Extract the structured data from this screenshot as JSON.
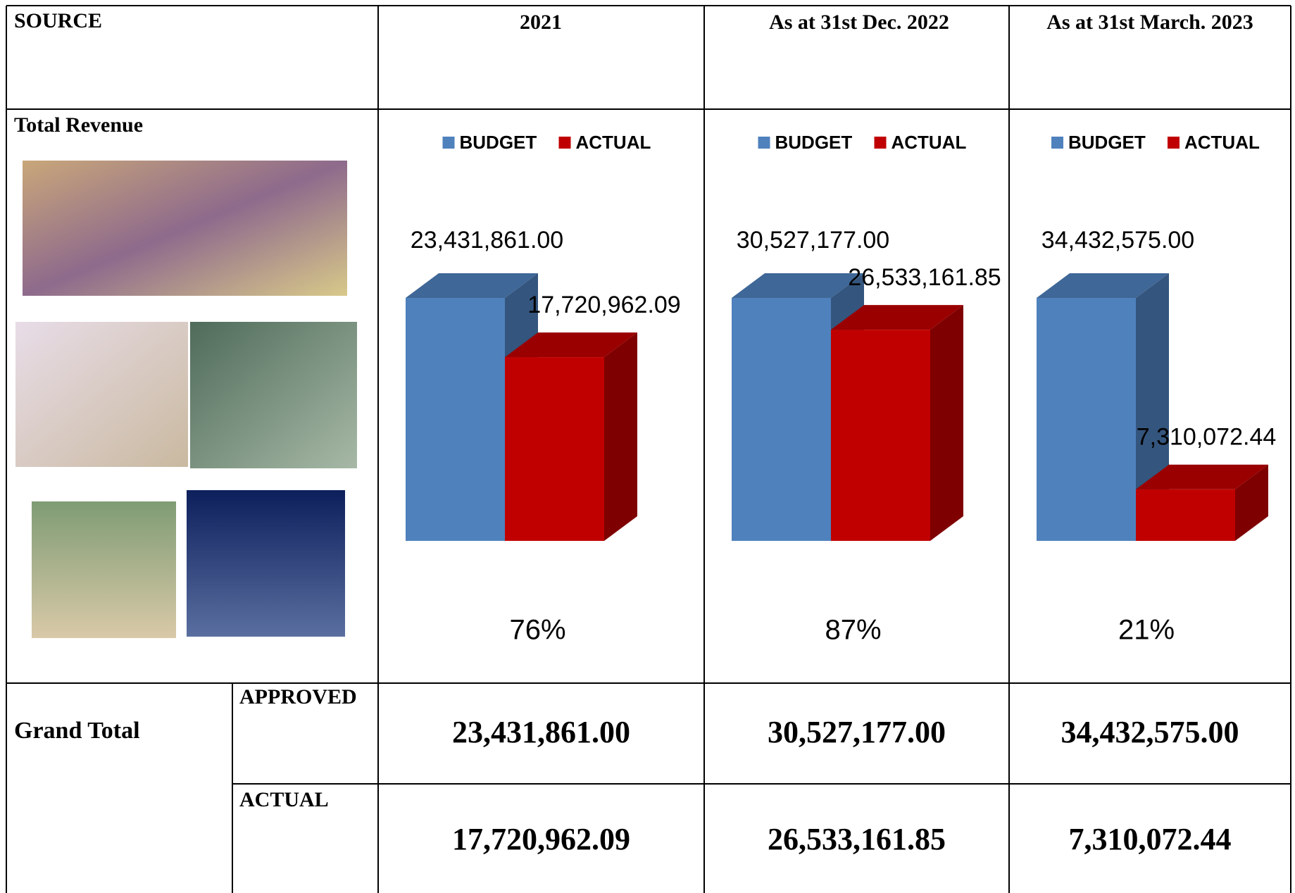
{
  "table": {
    "headers": [
      "SOURCE",
      "2021",
      "As at 31st Dec. 2022",
      "As at 31st March. 2023"
    ],
    "section": "Total Revenue",
    "grand_total": {
      "label": "Grand Total",
      "rows": [
        {
          "label": "APPROVED",
          "values": [
            "23,431,861.00",
            "30,527,177.00",
            "34,432,575.00"
          ]
        },
        {
          "label": "ACTUAL",
          "values": [
            "17,720,962.09",
            "26,533,161.85",
            "7,310,072.44"
          ]
        }
      ]
    }
  },
  "chart_data": [
    {
      "type": "bar",
      "annotation": "76%",
      "series": [
        {
          "name": "BUDGET",
          "color": "#4f81bd",
          "values": [
            23431861.0
          ],
          "value_labels": [
            "23,431,861.00"
          ]
        },
        {
          "name": "ACTUAL",
          "color": "#c00000",
          "values": [
            17720962.09
          ],
          "value_labels": [
            "17,720,962.09"
          ]
        }
      ]
    },
    {
      "type": "bar",
      "annotation": "87%",
      "series": [
        {
          "name": "BUDGET",
          "color": "#4f81bd",
          "values": [
            30527177.0
          ],
          "value_labels": [
            "30,527,177.00"
          ]
        },
        {
          "name": "ACTUAL",
          "color": "#c00000",
          "values": [
            26533161.85
          ],
          "value_labels": [
            "26,533,161.85"
          ]
        }
      ]
    },
    {
      "type": "bar",
      "annotation": "21%",
      "series": [
        {
          "name": "BUDGET",
          "color": "#4f81bd",
          "values": [
            34432575.0
          ],
          "value_labels": [
            "34,432,575.00"
          ]
        },
        {
          "name": "ACTUAL",
          "color": "#c00000",
          "values": [
            7310072.44
          ],
          "value_labels": [
            "7,310,072.44"
          ]
        }
      ]
    }
  ]
}
